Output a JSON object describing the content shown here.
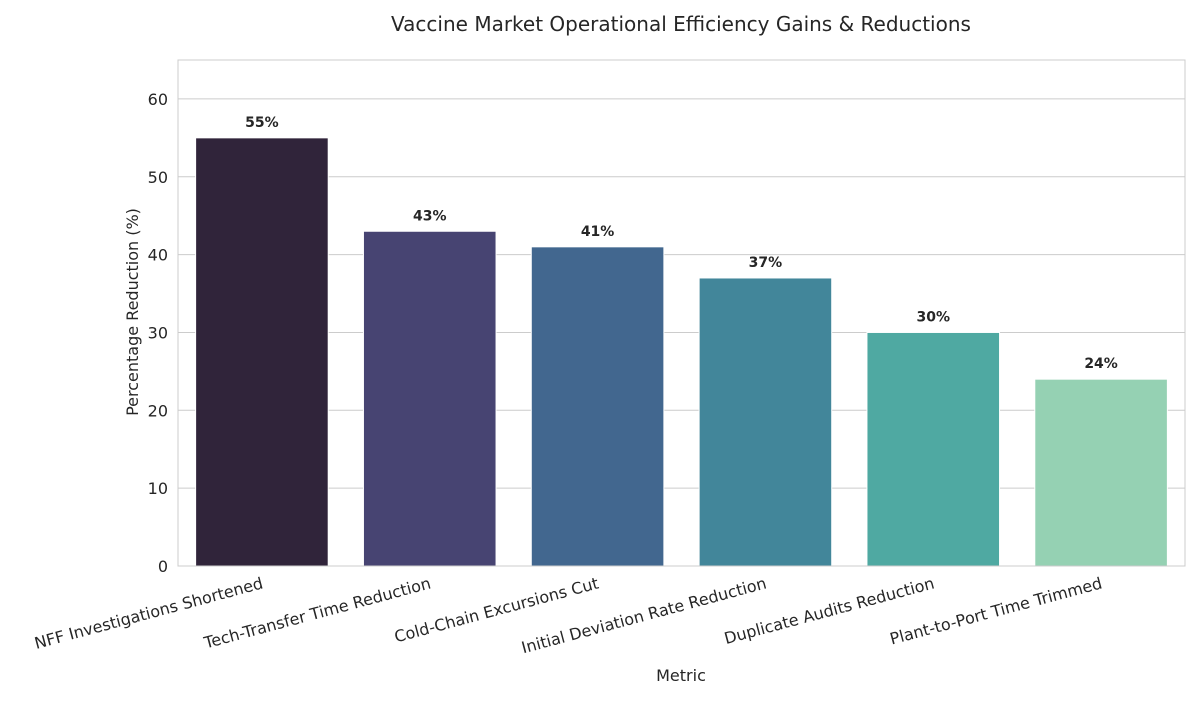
{
  "chart_data": {
    "type": "bar",
    "title": "Vaccine Market Operational Efficiency Gains & Reductions",
    "xlabel": "Metric",
    "ylabel": "Percentage Reduction (%)",
    "categories": [
      "NFF Investigations Shortened",
      "Tech-Transfer Time Reduction",
      "Cold-Chain Excursions Cut",
      "Initial Deviation Rate Reduction",
      "Duplicate Audits Reduction",
      "Plant-to-Port Time Trimmed"
    ],
    "values": [
      55,
      43,
      41,
      37,
      30,
      24
    ],
    "data_labels": [
      "55%",
      "43%",
      "41%",
      "37%",
      "30%",
      "24%"
    ],
    "colors": [
      "#30243a",
      "#474472",
      "#42678f",
      "#42869a",
      "#4fa9a2",
      "#95d1b3"
    ],
    "ylim": [
      0,
      65
    ],
    "yticks": [
      0,
      10,
      20,
      30,
      40,
      50,
      60
    ],
    "grid": "horizontal",
    "legend": "none"
  }
}
